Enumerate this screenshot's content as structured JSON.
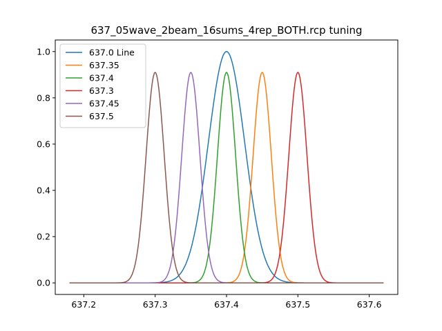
{
  "chart_data": {
    "type": "line",
    "title": "637_05wave_2beam_16sums_4rep_BOTH.rcp tuning",
    "xlabel": "",
    "ylabel": "",
    "xlim": [
      637.16,
      637.64
    ],
    "ylim": [
      -0.05,
      1.05
    ],
    "x_domain": [
      637.18,
      637.62
    ],
    "x_ticks": [
      637.2,
      637.3,
      637.4,
      637.5,
      637.6
    ],
    "x_tick_labels": [
      "637.2",
      "637.3",
      "637.4",
      "637.5",
      "637.6"
    ],
    "y_ticks": [
      0.0,
      0.2,
      0.4,
      0.6,
      0.8,
      1.0
    ],
    "y_tick_labels": [
      "0.0",
      "0.2",
      "0.4",
      "0.6",
      "0.8",
      "1.0"
    ],
    "grid": false,
    "legend_position": "top-left",
    "series": [
      {
        "name": "637.0 Line",
        "color": "#1f77b4",
        "center": 637.4,
        "peak": 1.0,
        "fwhm": 0.06
      },
      {
        "name": "637.35",
        "color": "#ff7f0e",
        "center": 637.45,
        "peak": 0.91,
        "fwhm": 0.03
      },
      {
        "name": "637.4",
        "color": "#2ca02c",
        "center": 637.4,
        "peak": 0.91,
        "fwhm": 0.03
      },
      {
        "name": "637.3",
        "color": "#d62728",
        "center": 637.5,
        "peak": 0.91,
        "fwhm": 0.03
      },
      {
        "name": "637.45",
        "color": "#9467bd",
        "center": 637.35,
        "peak": 0.91,
        "fwhm": 0.03
      },
      {
        "name": "637.5",
        "color": "#8c564b",
        "center": 637.3,
        "peak": 0.91,
        "fwhm": 0.03
      }
    ]
  }
}
